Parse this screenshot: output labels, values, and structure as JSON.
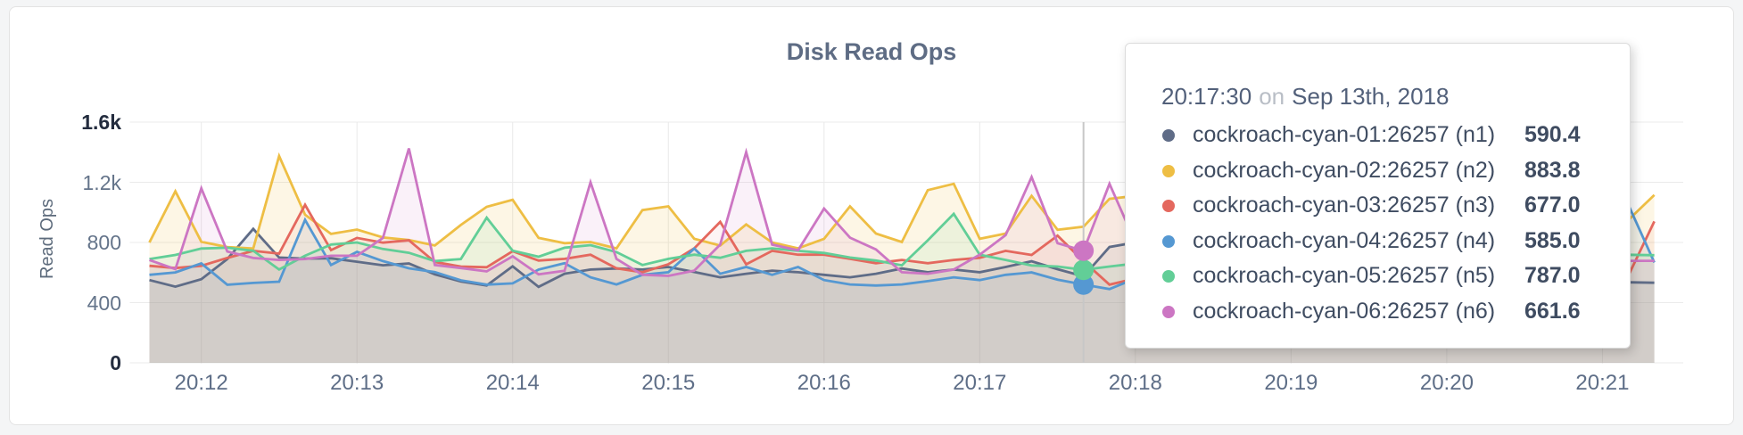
{
  "window": {
    "background": "#f4f5f6",
    "card_background": "#ffffff",
    "card_border": "#e3e3e3"
  },
  "chart_data": {
    "type": "line",
    "title": "Disk Read Ops",
    "ylabel": "Read Ops",
    "xlabel": "",
    "ylim": [
      0,
      1600
    ],
    "grid": true,
    "legend_position": "tooltip",
    "y_ticks": [
      {
        "label": "0",
        "value": 0,
        "emphasis": true
      },
      {
        "label": "400",
        "value": 400,
        "emphasis": false
      },
      {
        "label": "800",
        "value": 800,
        "emphasis": false
      },
      {
        "label": "1.2k",
        "value": 1200,
        "emphasis": false
      },
      {
        "label": "1.6k",
        "value": 1600,
        "emphasis": true
      }
    ],
    "x_ticks": [
      {
        "label": "20:12",
        "index": 2
      },
      {
        "label": "20:13",
        "index": 8
      },
      {
        "label": "20:14",
        "index": 14
      },
      {
        "label": "20:15",
        "index": 20
      },
      {
        "label": "20:16",
        "index": 26
      },
      {
        "label": "20:17",
        "index": 32
      },
      {
        "label": "20:18",
        "index": 38
      },
      {
        "label": "20:19",
        "index": 44
      },
      {
        "label": "20:20",
        "index": 50
      },
      {
        "label": "20:21",
        "index": 56
      }
    ],
    "x_times": [
      "20:11:40",
      "20:11:50",
      "20:12:00",
      "20:12:10",
      "20:12:20",
      "20:12:30",
      "20:12:40",
      "20:12:50",
      "20:13:00",
      "20:13:10",
      "20:13:20",
      "20:13:30",
      "20:13:40",
      "20:13:50",
      "20:14:00",
      "20:14:10",
      "20:14:20",
      "20:14:30",
      "20:14:40",
      "20:14:50",
      "20:15:00",
      "20:15:10",
      "20:15:20",
      "20:15:30",
      "20:15:40",
      "20:15:50",
      "20:16:00",
      "20:16:10",
      "20:16:20",
      "20:16:30",
      "20:16:40",
      "20:16:50",
      "20:17:00",
      "20:17:10",
      "20:17:20",
      "20:17:30",
      "20:17:40",
      "20:17:50",
      "20:18:00",
      "20:18:10",
      "20:18:20",
      "20:18:30",
      "20:18:40",
      "20:18:50",
      "20:19:00",
      "20:19:10",
      "20:19:20",
      "20:19:30",
      "20:19:40",
      "20:19:50",
      "20:20:00",
      "20:20:10",
      "20:20:20",
      "20:20:30",
      "20:20:40",
      "20:20:50",
      "20:21:00",
      "20:21:10",
      "20:21:20"
    ],
    "series": [
      {
        "name": "cockroach-cyan-01:26257 (n1)",
        "short": "n1",
        "color": "#5F6C87",
        "values": [
          550,
          506,
          556,
          690,
          890,
          700,
          693,
          695,
          672,
          648,
          660,
          588,
          541,
          514,
          641,
          505,
          592,
          620,
          627,
          620,
          637,
          604,
          568,
          592,
          613,
          602,
          585,
          568,
          592,
          627,
          602,
          620,
          602,
          637,
          675,
          622,
          575,
          770,
          800,
          740,
          660,
          600,
          570,
          590,
          620,
          645,
          610,
          575,
          595,
          615,
          600,
          575,
          558,
          545,
          555,
          542,
          538,
          535,
          532
        ]
      },
      {
        "name": "cockroach-cyan-02:26257 (n2)",
        "short": "n2",
        "color": "#EEBE44",
        "values": [
          800,
          1140,
          805,
          770,
          760,
          1375,
          984,
          857,
          886,
          833,
          816,
          780,
          916,
          1037,
          1084,
          830,
          795,
          803,
          761,
          1015,
          1040,
          824,
          779,
          920,
          800,
          761,
          824,
          1040,
          859,
          803,
          1148,
          1190,
          824,
          859,
          1110,
          884,
          905,
          1090,
          1110,
          960,
          870,
          820,
          900,
          1010,
          950,
          865,
          815,
          780,
          855,
          925,
          860,
          800,
          760,
          820,
          885,
          845,
          800,
          950,
          1115
        ]
      },
      {
        "name": "cockroach-cyan-03:26257 (n3)",
        "short": "n3",
        "color": "#E4685E",
        "values": [
          645,
          630,
          645,
          697,
          744,
          726,
          1050,
          749,
          830,
          799,
          814,
          670,
          640,
          635,
          742,
          680,
          691,
          719,
          628,
          602,
          655,
          761,
          937,
          655,
          744,
          719,
          719,
          691,
          662,
          684,
          662,
          684,
          698,
          744,
          717,
          845,
          675,
          520,
          560,
          620,
          705,
          755,
          690,
          640,
          612,
          660,
          725,
          782,
          800,
          740,
          680,
          640,
          662,
          700,
          682,
          660,
          640,
          580,
          940
        ]
      },
      {
        "name": "cockroach-cyan-04:26257 (n4)",
        "short": "n4",
        "color": "#5598D2",
        "values": [
          585,
          601,
          661,
          519,
          531,
          539,
          950,
          650,
          738,
          676,
          628,
          603,
          548,
          520,
          528,
          620,
          662,
          568,
          521,
          585,
          602,
          760,
          592,
          637,
          585,
          637,
          550,
          521,
          514,
          521,
          543,
          568,
          550,
          585,
          601,
          553,
          520,
          490,
          560,
          640,
          700,
          650,
          600,
          570,
          592,
          622,
          580,
          552,
          572,
          600,
          632,
          592,
          562,
          582,
          612,
          645,
          800,
          1050,
          667
        ]
      },
      {
        "name": "cockroach-cyan-05:26257 (n5)",
        "short": "n5",
        "color": "#62CE97",
        "values": [
          690,
          717,
          760,
          765,
          745,
          620,
          712,
          786,
          800,
          757,
          731,
          676,
          690,
          965,
          745,
          705,
          765,
          782,
          736,
          650,
          691,
          719,
          698,
          744,
          761,
          744,
          730,
          700,
          680,
          648,
          814,
          990,
          719,
          684,
          647,
          640,
          618,
          640,
          660,
          700,
          748,
          722,
          682,
          660,
          700,
          732,
          712,
          690,
          672,
          700,
          722,
          702,
          682,
          700,
          720,
          712,
          715,
          718,
          715
        ]
      },
      {
        "name": "cockroach-cyan-06:26257 (n6)",
        "short": "n6",
        "color": "#CC76C3",
        "values": [
          683,
          622,
          1160,
          740,
          697,
          684,
          690,
          712,
          712,
          830,
          1425,
          650,
          630,
          608,
          708,
          588,
          612,
          1200,
          691,
          585,
          578,
          613,
          786,
          1400,
          786,
          748,
          1025,
          832,
          754,
          602,
          592,
          620,
          719,
          849,
          1235,
          795,
          745,
          1190,
          800,
          740,
          690,
          660,
          680,
          710,
          690,
          665,
          680,
          700,
          690,
          670,
          682,
          695,
          680,
          670,
          678,
          682,
          680,
          678,
          678
        ]
      }
    ]
  },
  "hover": {
    "index": 36,
    "line_color": "#c7c7c7",
    "dots": [
      {
        "series": "n4",
        "value": 520,
        "color": "#5598D2"
      },
      {
        "series": "n5",
        "value": 618,
        "color": "#62CE97"
      },
      {
        "series": "n6",
        "value": 745,
        "color": "#CC76C3"
      }
    ]
  },
  "tooltip": {
    "time": "20:17:30",
    "on_word": "on",
    "date": "Sep 13th, 2018",
    "rows": [
      {
        "name": "cockroach-cyan-01:26257 (n1)",
        "value": "590.4",
        "color": "#5F6C87"
      },
      {
        "name": "cockroach-cyan-02:26257 (n2)",
        "value": "883.8",
        "color": "#EEBE44"
      },
      {
        "name": "cockroach-cyan-03:26257 (n3)",
        "value": "677.0",
        "color": "#E4685E"
      },
      {
        "name": "cockroach-cyan-04:26257 (n4)",
        "value": "585.0",
        "color": "#5598D2"
      },
      {
        "name": "cockroach-cyan-05:26257 (n5)",
        "value": "787.0",
        "color": "#62CE97"
      },
      {
        "name": "cockroach-cyan-06:26257 (n6)",
        "value": "661.6",
        "color": "#CC76C3"
      }
    ]
  }
}
